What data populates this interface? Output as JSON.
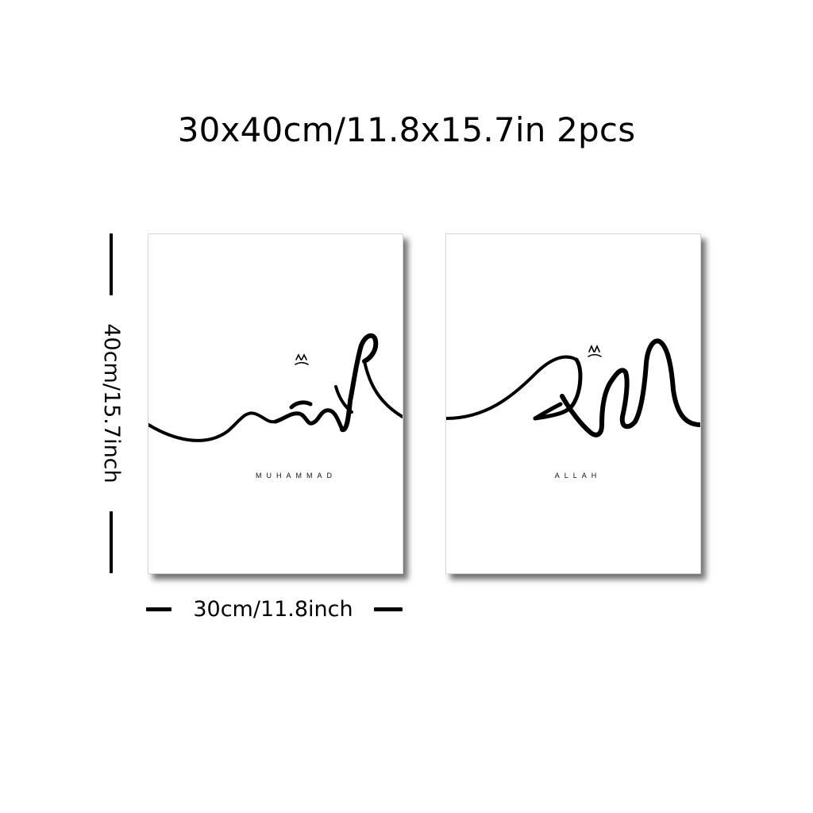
{
  "heading": "30x40cm/11.8x15.7in 2pcs",
  "dimensions": {
    "height_label": "40cm/15.7inch",
    "width_label": "30cm/11.8inch"
  },
  "posters": [
    {
      "caption": "MUHAMMAD"
    },
    {
      "caption": "ALLAH"
    }
  ],
  "colors": {
    "background": "#ffffff",
    "ink": "#000000"
  }
}
